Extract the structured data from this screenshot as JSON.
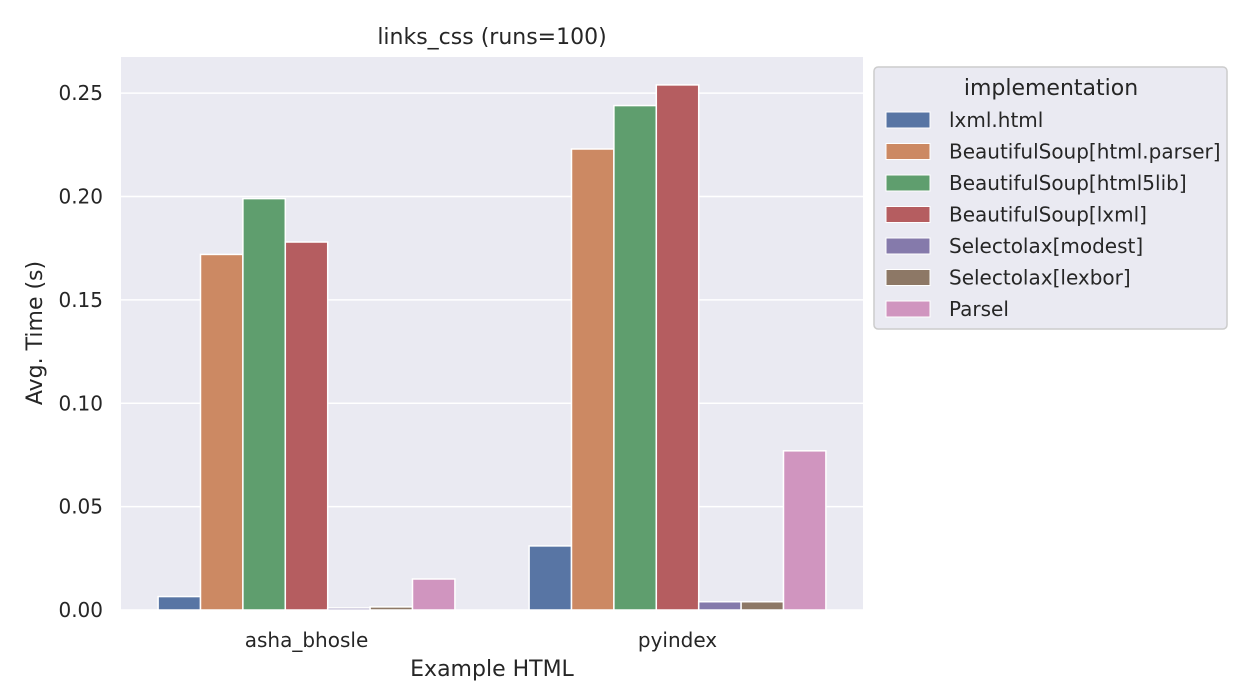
{
  "chart_data": {
    "type": "bar",
    "title": "links_css (runs=100)",
    "xlabel": "Example HTML",
    "ylabel": "Avg. Time (s)",
    "categories": [
      "asha_bhosle",
      "pyindex"
    ],
    "ylim": [
      0,
      0.2675
    ],
    "yticks": [
      "0.00",
      "0.05",
      "0.10",
      "0.15",
      "0.20",
      "0.25"
    ],
    "grid": true,
    "legend": {
      "title": "implementation",
      "placement": "outside-top-right"
    },
    "series": [
      {
        "name": "lxml.html",
        "color": "#5875a4",
        "values": [
          0.0065,
          0.031
        ]
      },
      {
        "name": "BeautifulSoup[html.parser]",
        "color": "#cc8963",
        "values": [
          0.172,
          0.223
        ]
      },
      {
        "name": "BeautifulSoup[html5lib]",
        "color": "#5f9e6e",
        "values": [
          0.199,
          0.244
        ]
      },
      {
        "name": "BeautifulSoup[lxml]",
        "color": "#b55d60",
        "values": [
          0.178,
          0.254
        ]
      },
      {
        "name": "Selectolax[modest]",
        "color": "#857aab",
        "values": [
          0.001,
          0.004
        ]
      },
      {
        "name": "Selectolax[lexbor]",
        "color": "#8d7866",
        "values": [
          0.0015,
          0.004
        ]
      },
      {
        "name": "Parsel",
        "color": "#d095bf",
        "values": [
          0.015,
          0.077
        ]
      }
    ]
  }
}
